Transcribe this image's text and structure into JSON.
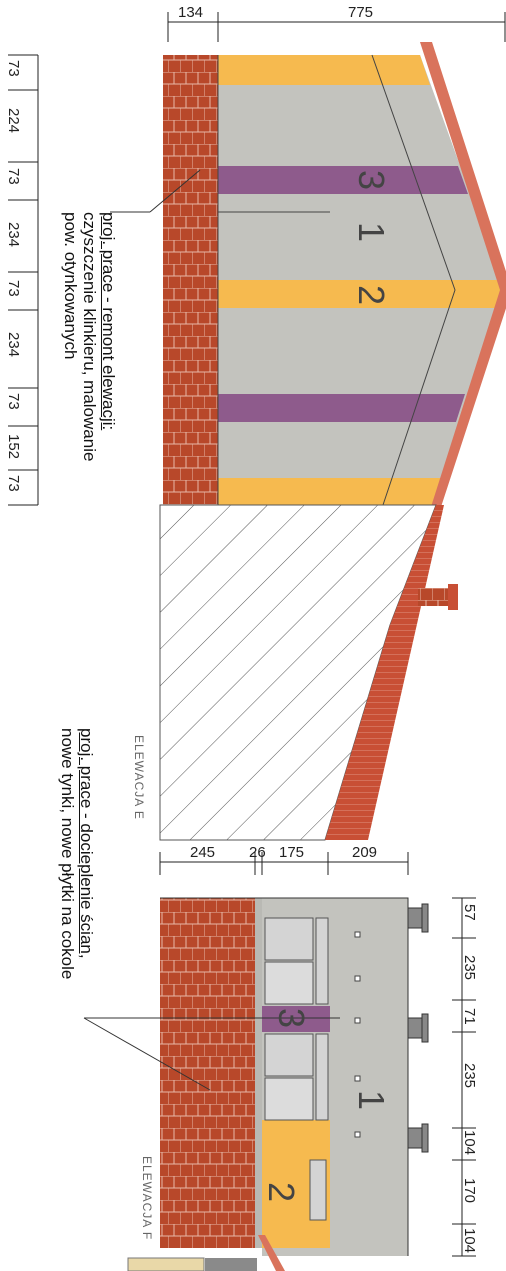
{
  "colors": {
    "brick": "#b8482a",
    "mortar": "#e7b8a8",
    "plaster_gray": "#c3c3be",
    "orange_band": "#f6ba4f",
    "purple_band": "#8e5b8c",
    "roof": "#d9735c",
    "hatch": "#555555"
  },
  "elevation_e": {
    "label": "ELEWACJA E",
    "top_dims": [
      "134",
      "775"
    ],
    "left_dims": [
      "73",
      "224",
      "73",
      "234",
      "73",
      "234",
      "73",
      "152",
      "73"
    ],
    "note_lines": [
      "proj. prace - remont elewacji:",
      "czyszczenie klinkieru, malowanie",
      "pow. otynkowanych"
    ],
    "markers": [
      "3",
      "1",
      "2"
    ]
  },
  "elevation_f": {
    "label": "ELEWACJA F",
    "top_dims": [
      "245",
      "26",
      "175",
      "209"
    ],
    "right_dims": [
      "57",
      "235",
      "71",
      "235",
      "104",
      "170",
      "104"
    ],
    "note_lines": [
      "proj. prace - docieplenie ścian,",
      "nowe tynki, nowe płytki na cokole"
    ],
    "markers": [
      "3",
      "1",
      "2"
    ]
  }
}
